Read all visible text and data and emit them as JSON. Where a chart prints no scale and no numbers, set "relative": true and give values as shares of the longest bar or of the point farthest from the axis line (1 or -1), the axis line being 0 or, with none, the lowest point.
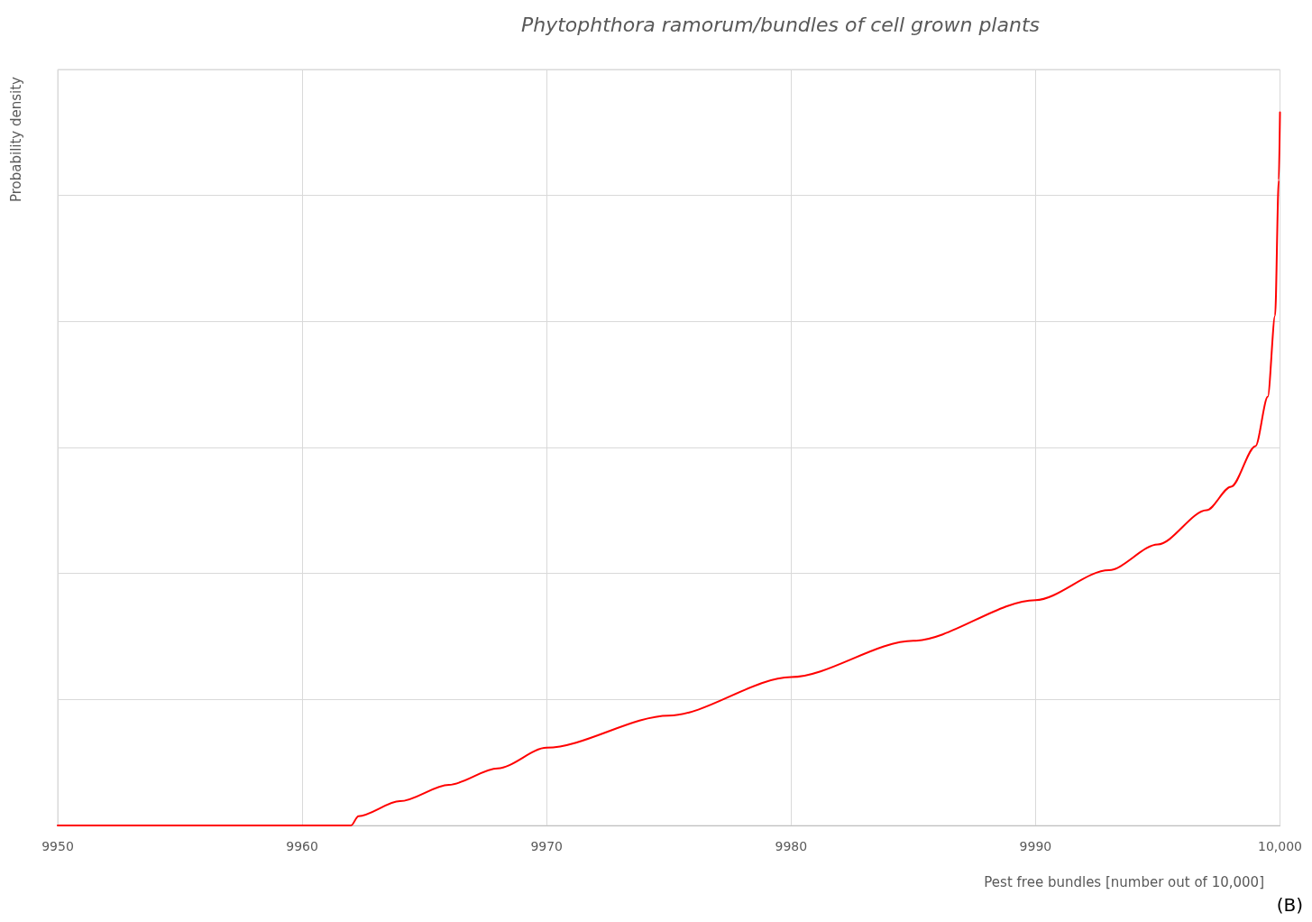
{
  "chart_data": {
    "type": "line",
    "title": "Phytophthora ramorum/bundles of cell grown plants",
    "xlabel": "Pest free bundles [number out of 10,000]",
    "ylabel": "Probability density",
    "annotations": [
      "(B)"
    ],
    "relative": true,
    "grid": true,
    "tick_labels": "x",
    "marker": "none",
    "line_style": "solid",
    "xlim": [
      9950,
      10000
    ],
    "xticks": [
      9950,
      9960,
      9970,
      9980,
      9990,
      {
        "value": 10000,
        "label": "10,000"
      }
    ],
    "series": [
      {
        "color": "#ff0000",
        "x": [
          9950,
          9962,
          9962.3,
          9964,
          9966,
          9968,
          9970,
          9975,
          9980,
          9985,
          9990,
          9993,
          9995,
          9997,
          9998,
          9999,
          9999.5,
          9999.8,
          9999.95,
          10000
        ],
        "values": [
          0,
          0,
          0.013,
          0.034,
          0.057,
          0.08,
          0.109,
          0.154,
          0.208,
          0.259,
          0.316,
          0.358,
          0.394,
          0.442,
          0.475,
          0.532,
          0.601,
          0.715,
          0.905,
          1
        ]
      }
    ]
  }
}
